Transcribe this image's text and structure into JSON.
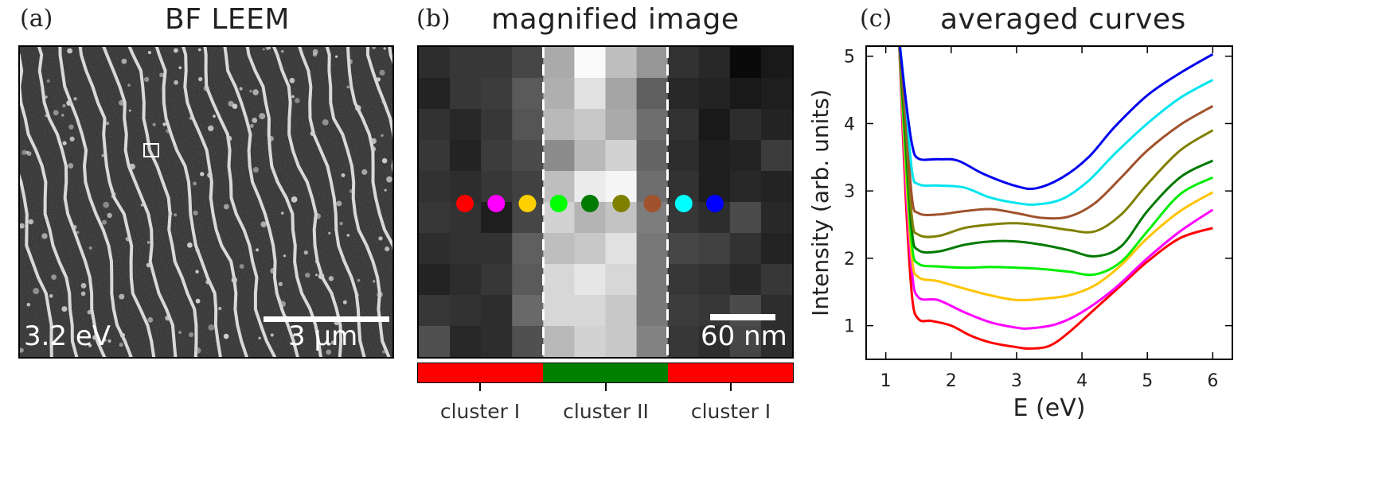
{
  "panel_a": {
    "letter": "(a)",
    "title": "BF LEEM",
    "energy_label": "3.2 eV",
    "scalebar_label": "3 µm"
  },
  "panel_b": {
    "letter": "(b)",
    "title": "magnified image",
    "scalebar_label": "60 nm",
    "cluster_labels": [
      "cluster I",
      "cluster II",
      "cluster I"
    ],
    "cluster_colors": [
      "#ff0000",
      "#008000",
      "#ff0000"
    ],
    "marker_colors": [
      "#ff0000",
      "#ff00ff",
      "#ffd000",
      "#00ff00",
      "#007a00",
      "#808000",
      "#a0522d",
      "#00ffff",
      "#0000ff"
    ],
    "pixel_gray": [
      [
        45,
        55,
        55,
        70,
        170,
        250,
        190,
        150,
        50,
        40,
        10,
        25
      ],
      [
        35,
        55,
        60,
        90,
        175,
        225,
        165,
        95,
        40,
        35,
        25,
        30
      ],
      [
        50,
        40,
        55,
        85,
        185,
        200,
        170,
        110,
        50,
        25,
        45,
        35
      ],
      [
        55,
        35,
        60,
        75,
        140,
        185,
        210,
        100,
        45,
        30,
        35,
        60
      ],
      [
        50,
        45,
        55,
        65,
        190,
        235,
        245,
        110,
        50,
        30,
        40,
        35
      ],
      [
        55,
        50,
        30,
        70,
        210,
        180,
        195,
        125,
        55,
        45,
        75,
        40
      ],
      [
        45,
        50,
        50,
        95,
        190,
        200,
        225,
        120,
        70,
        65,
        50,
        35
      ],
      [
        35,
        45,
        55,
        90,
        215,
        230,
        215,
        120,
        55,
        50,
        40,
        55
      ],
      [
        55,
        50,
        45,
        105,
        215,
        215,
        200,
        120,
        60,
        55,
        75,
        45
      ],
      [
        80,
        40,
        45,
        80,
        185,
        210,
        200,
        130,
        55,
        45,
        70,
        45
      ]
    ]
  },
  "panel_c": {
    "letter": "(c)",
    "title": "averaged curves",
    "chart_data": {
      "type": "line",
      "title": "averaged curves",
      "xlabel": "E (eV)",
      "ylabel": "Intensity (arb. units)",
      "xlim": [
        0.7,
        6.3
      ],
      "ylim": [
        0.5,
        5.15
      ],
      "xticks": [
        1,
        2,
        3,
        4,
        5,
        6
      ],
      "yticks": [
        1,
        2,
        3,
        4,
        5
      ],
      "grid": false,
      "series": [
        {
          "color": "#ff0000",
          "points": [
            [
              1.2,
              5.3
            ],
            [
              1.3,
              3.0
            ],
            [
              1.4,
              1.45
            ],
            [
              1.5,
              1.1
            ],
            [
              1.7,
              1.07
            ],
            [
              2.0,
              1.0
            ],
            [
              2.3,
              0.85
            ],
            [
              2.6,
              0.75
            ],
            [
              3.0,
              0.68
            ],
            [
              3.2,
              0.66
            ],
            [
              3.5,
              0.7
            ],
            [
              3.8,
              0.9
            ],
            [
              4.2,
              1.25
            ],
            [
              4.6,
              1.6
            ],
            [
              5.0,
              1.95
            ],
            [
              5.5,
              2.3
            ],
            [
              6.0,
              2.45
            ]
          ]
        },
        {
          "color": "#ff00ff",
          "points": [
            [
              1.2,
              5.3
            ],
            [
              1.3,
              3.2
            ],
            [
              1.4,
              1.8
            ],
            [
              1.5,
              1.42
            ],
            [
              1.8,
              1.38
            ],
            [
              2.2,
              1.2
            ],
            [
              2.6,
              1.05
            ],
            [
              3.0,
              0.97
            ],
            [
              3.2,
              0.96
            ],
            [
              3.6,
              1.02
            ],
            [
              4.0,
              1.2
            ],
            [
              4.5,
              1.55
            ],
            [
              5.0,
              2.0
            ],
            [
              5.5,
              2.4
            ],
            [
              6.0,
              2.72
            ]
          ]
        },
        {
          "color": "#ffc400",
          "points": [
            [
              1.2,
              5.3
            ],
            [
              1.3,
              3.4
            ],
            [
              1.4,
              2.0
            ],
            [
              1.5,
              1.72
            ],
            [
              1.8,
              1.66
            ],
            [
              2.2,
              1.55
            ],
            [
              2.6,
              1.45
            ],
            [
              3.0,
              1.38
            ],
            [
              3.4,
              1.4
            ],
            [
              3.8,
              1.45
            ],
            [
              4.2,
              1.6
            ],
            [
              4.6,
              1.9
            ],
            [
              5.0,
              2.3
            ],
            [
              5.5,
              2.7
            ],
            [
              6.0,
              2.98
            ]
          ]
        },
        {
          "color": "#00ee00",
          "points": [
            [
              1.2,
              5.3
            ],
            [
              1.3,
              3.6
            ],
            [
              1.4,
              2.2
            ],
            [
              1.5,
              1.92
            ],
            [
              1.8,
              1.88
            ],
            [
              2.2,
              1.86
            ],
            [
              2.6,
              1.87
            ],
            [
              3.0,
              1.86
            ],
            [
              3.4,
              1.84
            ],
            [
              3.8,
              1.8
            ],
            [
              4.2,
              1.76
            ],
            [
              4.6,
              1.95
            ],
            [
              5.0,
              2.4
            ],
            [
              5.5,
              2.95
            ],
            [
              6.0,
              3.2
            ]
          ]
        },
        {
          "color": "#007a00",
          "points": [
            [
              1.2,
              5.3
            ],
            [
              1.3,
              3.8
            ],
            [
              1.4,
              2.4
            ],
            [
              1.5,
              2.12
            ],
            [
              1.8,
              2.1
            ],
            [
              2.2,
              2.2
            ],
            [
              2.6,
              2.25
            ],
            [
              3.0,
              2.25
            ],
            [
              3.4,
              2.2
            ],
            [
              3.8,
              2.12
            ],
            [
              4.2,
              2.03
            ],
            [
              4.6,
              2.18
            ],
            [
              5.0,
              2.7
            ],
            [
              5.5,
              3.2
            ],
            [
              6.0,
              3.45
            ]
          ]
        },
        {
          "color": "#808000",
          "points": [
            [
              1.2,
              5.3
            ],
            [
              1.3,
              4.0
            ],
            [
              1.4,
              2.6
            ],
            [
              1.5,
              2.35
            ],
            [
              1.8,
              2.33
            ],
            [
              2.2,
              2.45
            ],
            [
              2.6,
              2.5
            ],
            [
              3.0,
              2.52
            ],
            [
              3.4,
              2.48
            ],
            [
              3.8,
              2.42
            ],
            [
              4.2,
              2.4
            ],
            [
              4.6,
              2.65
            ],
            [
              5.0,
              3.1
            ],
            [
              5.5,
              3.6
            ],
            [
              6.0,
              3.9
            ]
          ]
        },
        {
          "color": "#a0522d",
          "points": [
            [
              1.2,
              5.3
            ],
            [
              1.3,
              4.2
            ],
            [
              1.4,
              2.9
            ],
            [
              1.5,
              2.67
            ],
            [
              1.8,
              2.65
            ],
            [
              2.2,
              2.7
            ],
            [
              2.6,
              2.73
            ],
            [
              3.0,
              2.67
            ],
            [
              3.4,
              2.6
            ],
            [
              3.8,
              2.62
            ],
            [
              4.2,
              2.82
            ],
            [
              4.6,
              3.2
            ],
            [
              5.0,
              3.6
            ],
            [
              5.5,
              3.98
            ],
            [
              6.0,
              4.26
            ]
          ]
        },
        {
          "color": "#00e5ee",
          "points": [
            [
              1.2,
              5.3
            ],
            [
              1.3,
              4.4
            ],
            [
              1.4,
              3.3
            ],
            [
              1.5,
              3.1
            ],
            [
              1.8,
              3.08
            ],
            [
              2.2,
              3.05
            ],
            [
              2.6,
              2.9
            ],
            [
              3.0,
              2.82
            ],
            [
              3.3,
              2.8
            ],
            [
              3.7,
              2.88
            ],
            [
              4.1,
              3.15
            ],
            [
              4.5,
              3.55
            ],
            [
              5.0,
              4.0
            ],
            [
              5.5,
              4.38
            ],
            [
              6.0,
              4.65
            ]
          ]
        },
        {
          "color": "#0000ee",
          "points": [
            [
              1.2,
              5.3
            ],
            [
              1.3,
              4.4
            ],
            [
              1.4,
              3.7
            ],
            [
              1.5,
              3.48
            ],
            [
              1.8,
              3.47
            ],
            [
              2.1,
              3.45
            ],
            [
              2.5,
              3.25
            ],
            [
              3.0,
              3.07
            ],
            [
              3.3,
              3.04
            ],
            [
              3.7,
              3.2
            ],
            [
              4.1,
              3.5
            ],
            [
              4.5,
              3.95
            ],
            [
              5.0,
              4.42
            ],
            [
              5.5,
              4.75
            ],
            [
              6.0,
              5.03
            ]
          ]
        }
      ]
    }
  }
}
